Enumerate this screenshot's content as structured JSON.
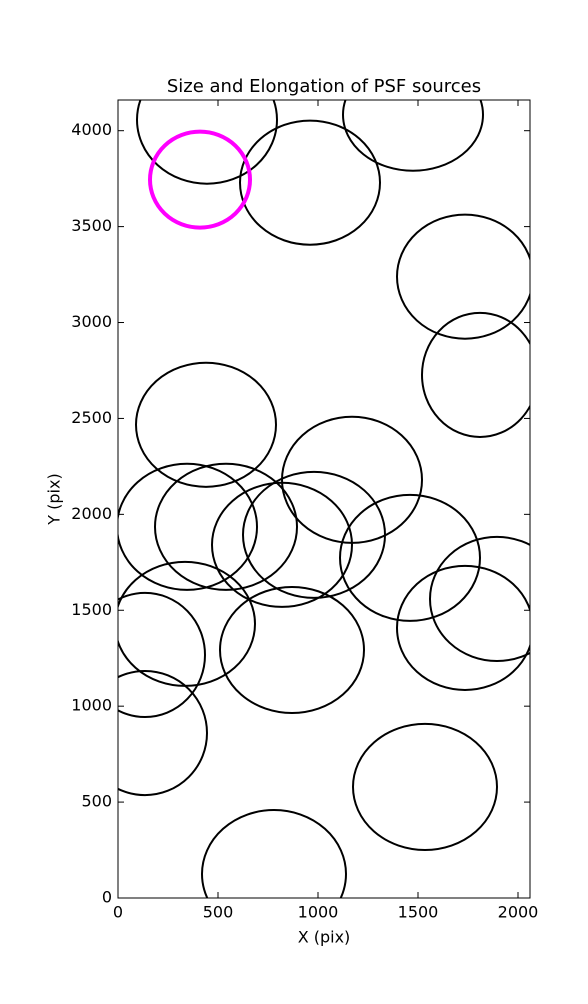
{
  "chart_data": {
    "type": "ellipse",
    "title": "Size and Elongation of PSF sources",
    "xlabel": "X (pix)",
    "ylabel": "Y (pix)",
    "xlim": [
      0,
      2060
    ],
    "ylim": [
      0,
      4160
    ],
    "xticks": [
      0,
      500,
      1000,
      1500,
      2000
    ],
    "yticks": [
      0,
      500,
      1000,
      1500,
      2000,
      2500,
      3000,
      3500,
      4000
    ],
    "grid": false,
    "series": [
      {
        "color": "#000000",
        "linewidth": 2,
        "x": [
          445,
          960,
          1475,
          1735,
          1810,
          440,
          345,
          540,
          820,
          980,
          1170,
          1460,
          335,
          135,
          135,
          870,
          1895,
          1735,
          1535,
          780
        ],
        "y": [
          4057,
          3729,
          4083,
          3239,
          2727,
          2467,
          1935,
          1935,
          1841,
          1893,
          2180,
          1773,
          1429,
          1267,
          860,
          1293,
          1559,
          1408,
          579,
          125
        ],
        "width": [
          700,
          700,
          700,
          680,
          580,
          700,
          700,
          710,
          700,
          710,
          700,
          700,
          700,
          600,
          620,
          720,
          670,
          680,
          720,
          720
        ],
        "height": [
          667,
          647,
          584,
          647,
          647,
          647,
          657,
          657,
          647,
          657,
          657,
          657,
          647,
          647,
          647,
          657,
          647,
          647,
          657,
          667
        ]
      },
      {
        "color": "#ff00ff",
        "linewidth": 4,
        "x": [
          410
        ],
        "y": [
          3745
        ],
        "width": [
          500
        ],
        "height": [
          500
        ]
      }
    ]
  }
}
